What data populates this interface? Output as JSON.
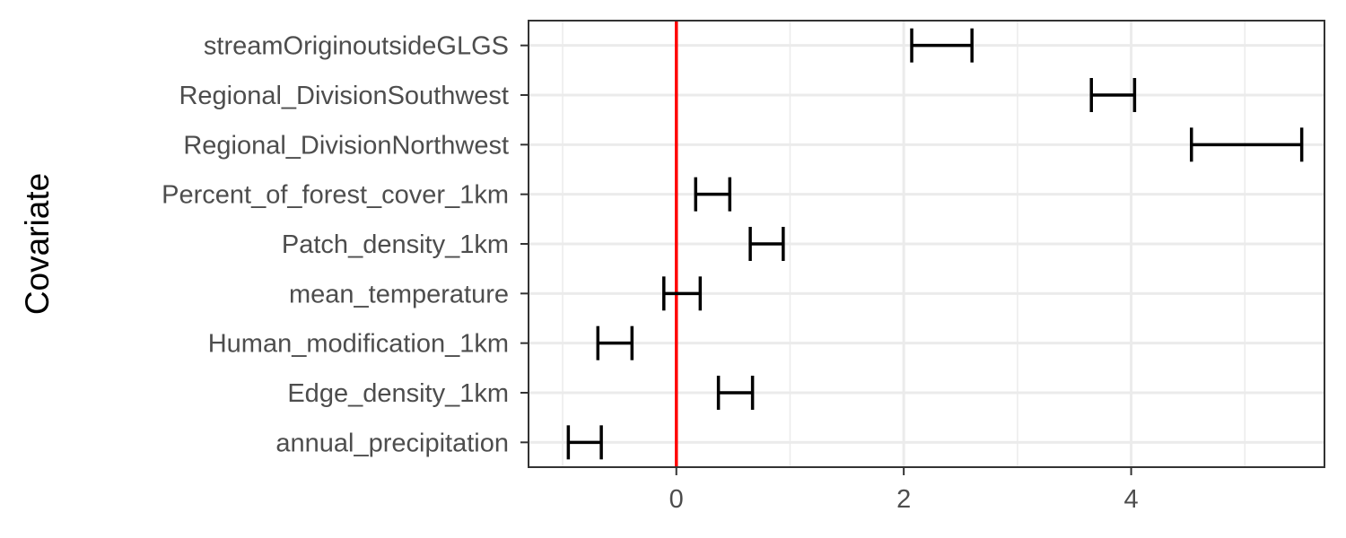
{
  "chart_data": {
    "type": "errorbar",
    "title": "",
    "xlabel": "",
    "ylabel": "Covariate",
    "xlim": [
      -1.3,
      5.7
    ],
    "x_ticks": [
      0,
      2,
      4
    ],
    "x_tick_labels": [
      "0",
      "2",
      "4"
    ],
    "x_minor_gridlines": [
      -1,
      1,
      3,
      5
    ],
    "reference_line": {
      "x": 0,
      "color": "#ff0000"
    },
    "grid": true,
    "legend": "none",
    "categories": [
      "annual_precipitation",
      "Edge_density_1km",
      "Human_modification_1km",
      "mean_temperature",
      "Patch_density_1km",
      "Percent_of_forest_cover_1km",
      "Regional_DivisionNorthwest",
      "Regional_DivisionSouthwest",
      "streamOriginoutsideGLGS"
    ],
    "series": [
      {
        "lower": [
          -0.95,
          0.37,
          -0.69,
          -0.11,
          0.65,
          0.17,
          4.53,
          3.65,
          2.07
        ],
        "upper": [
          -0.66,
          0.67,
          -0.39,
          0.21,
          0.94,
          0.47,
          5.5,
          4.03,
          2.6
        ]
      }
    ],
    "colors": {
      "errorbar": "#000000",
      "grid": "#ebebeb",
      "panel_border": "#333333"
    }
  }
}
